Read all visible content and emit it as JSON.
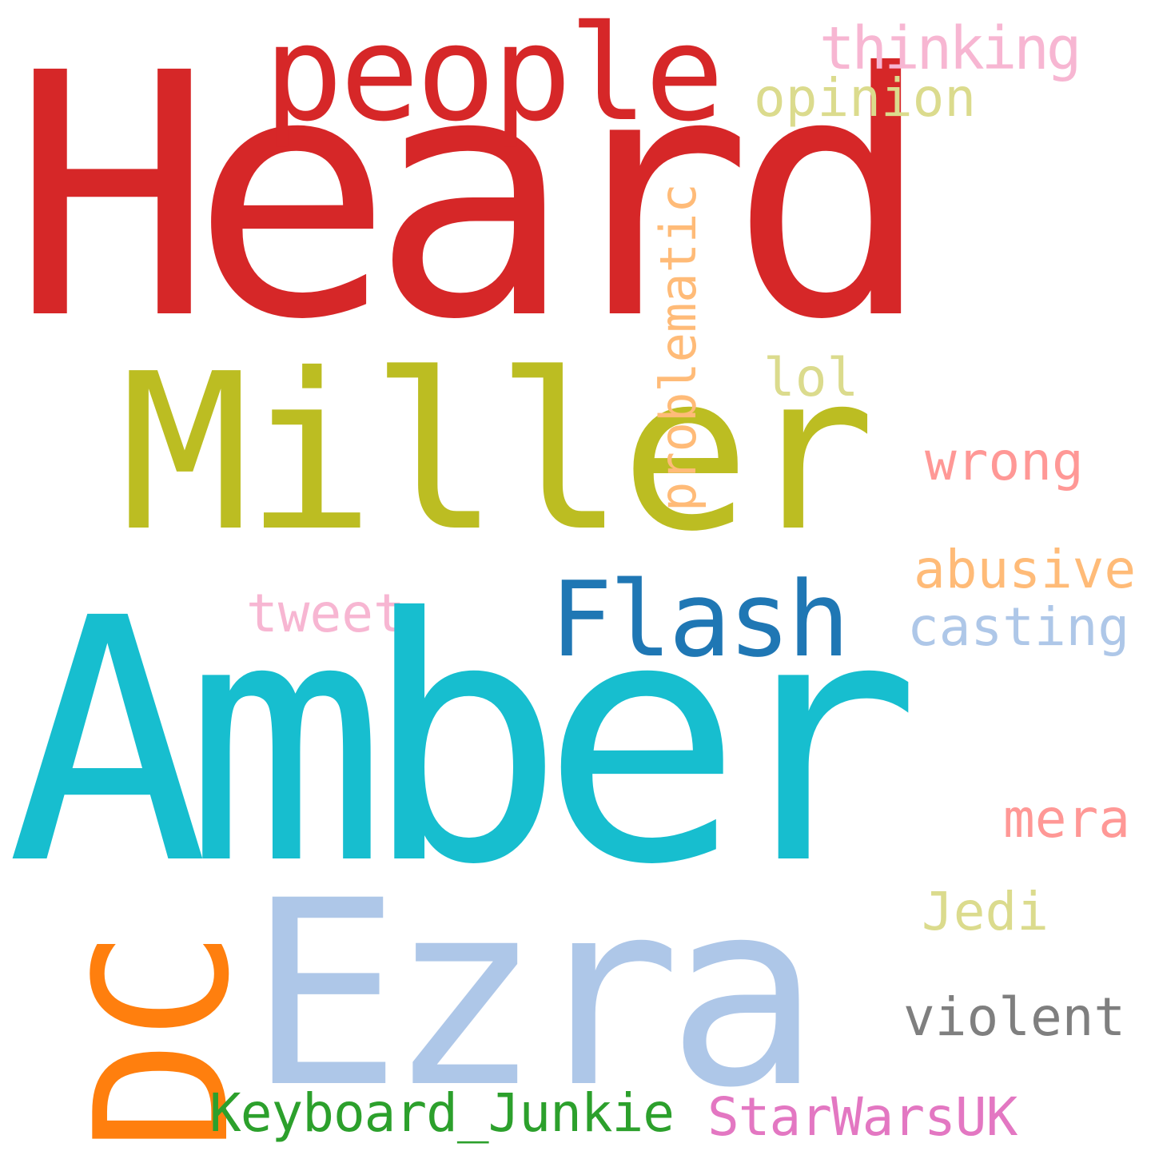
{
  "words": {
    "heard": {
      "text": "Heard",
      "color": "#d62728"
    },
    "amber": {
      "text": "Amber",
      "color": "#17becf"
    },
    "miller": {
      "text": "Miller",
      "color": "#bcbd22"
    },
    "ezra": {
      "text": "Ezra",
      "color": "#aec7e8"
    },
    "dc": {
      "text": "DC",
      "color": "#ff7f0e"
    },
    "people": {
      "text": "people",
      "color": "#d62728"
    },
    "flash": {
      "text": "Flash",
      "color": "#1f77b4"
    },
    "problematic": {
      "text": "problematic",
      "color": "#ffbb78"
    },
    "thinking": {
      "text": "thinking",
      "color": "#f7b6d2"
    },
    "opinion": {
      "text": "opinion",
      "color": "#dbdb8d"
    },
    "lol": {
      "text": "lol",
      "color": "#dbdb8d"
    },
    "wrong": {
      "text": "wrong",
      "color": "#ff9896"
    },
    "abusive": {
      "text": "abusive",
      "color": "#ffbb78"
    },
    "casting": {
      "text": "casting",
      "color": "#aec7e8"
    },
    "tweet": {
      "text": "tweet",
      "color": "#f7b6d2"
    },
    "mera": {
      "text": "mera",
      "color": "#ff9896"
    },
    "jedi": {
      "text": "Jedi",
      "color": "#dbdb8d"
    },
    "violent": {
      "text": "violent",
      "color": "#7f7f7f"
    },
    "keyboard_junkie": {
      "text": "Keyboard_Junkie",
      "color": "#2ca02c"
    },
    "starwarsuk": {
      "text": "StarWarsUK",
      "color": "#e377c2"
    }
  }
}
